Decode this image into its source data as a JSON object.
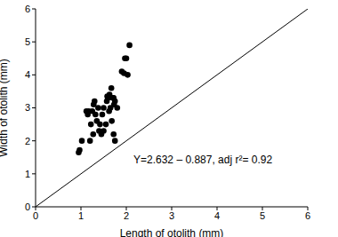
{
  "chart_data": {
    "type": "scatter",
    "x_label": "Length of otolith (mm)",
    "y_label": "Width of otolith (mm)",
    "annotation": "Y=2.632 – 0.887, adj r²= 0.92",
    "x": [
      0.95,
      0.97,
      1.02,
      1.12,
      1.15,
      1.17,
      1.2,
      1.22,
      1.25,
      1.27,
      1.28,
      1.3,
      1.32,
      1.35,
      1.38,
      1.4,
      1.42,
      1.45,
      1.47,
      1.5,
      1.5,
      1.55,
      1.57,
      1.58,
      1.6,
      1.62,
      1.63,
      1.65,
      1.67,
      1.68,
      1.7,
      1.72,
      1.72,
      1.73,
      1.75,
      1.75,
      1.8,
      1.9,
      1.95,
      1.97,
      2.0,
      2.03,
      2.07
    ],
    "values": [
      1.65,
      1.72,
      2.0,
      2.9,
      2.8,
      2.9,
      2.0,
      2.5,
      2.9,
      2.2,
      3.1,
      3.2,
      2.8,
      2.6,
      3.0,
      2.3,
      2.5,
      2.2,
      2.8,
      3.0,
      2.3,
      2.5,
      3.2,
      3.35,
      3.3,
      2.9,
      3.4,
      3.0,
      3.6,
      2.6,
      3.3,
      3.3,
      2.2,
      3.1,
      3.2,
      2.0,
      3.0,
      4.1,
      4.05,
      4.5,
      4.5,
      4.0,
      4.9
    ],
    "color": "#000000",
    "marker": "circle",
    "reference_line": {
      "x": [
        0,
        6
      ],
      "y": [
        0,
        6
      ]
    },
    "xlim": [
      0,
      6
    ],
    "ylim": [
      0,
      6
    ],
    "xticks": [
      0,
      1,
      2,
      3,
      4,
      5,
      6
    ],
    "yticks": [
      0,
      1,
      2,
      3,
      4,
      5,
      6
    ]
  }
}
